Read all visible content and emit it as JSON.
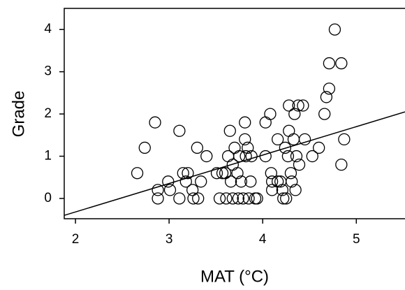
{
  "chart_data": {
    "type": "scatter",
    "xlabel": "MAT (°C)",
    "ylabel": "Grade",
    "xlim": [
      1.88,
      5.52
    ],
    "ylim": [
      -0.48,
      4.5
    ],
    "xticks": [
      2,
      3,
      4,
      5
    ],
    "yticks": [
      0,
      1,
      2,
      3,
      4
    ],
    "series": [
      {
        "color": "#000000",
        "x": [
          2.66,
          2.74,
          2.85,
          2.88,
          2.88,
          2.99,
          3.01,
          3.11,
          3.11,
          3.15,
          3.18,
          3.2,
          3.25,
          3.26,
          3.3,
          3.31,
          3.34,
          3.4,
          3.51,
          3.54,
          3.57,
          3.6,
          3.61,
          3.63,
          3.65,
          3.66,
          3.68,
          3.68,
          3.7,
          3.73,
          3.74,
          3.75,
          3.77,
          3.79,
          3.81,
          3.81,
          3.82,
          3.84,
          3.85,
          3.87,
          3.88,
          3.92,
          3.94,
          4.03,
          4.03,
          4.08,
          4.09,
          4.1,
          4.1,
          4.16,
          4.16,
          4.19,
          4.21,
          4.22,
          4.24,
          4.25,
          4.27,
          4.28,
          4.28,
          4.3,
          4.31,
          4.33,
          4.34,
          4.35,
          4.36,
          4.38,
          4.39,
          4.43,
          4.45,
          4.53,
          4.6,
          4.66,
          4.68,
          4.71,
          4.71,
          4.77,
          4.84,
          4.84,
          4.87
        ],
        "values": [
          0.6,
          1.2,
          1.8,
          0.2,
          0,
          0.4,
          0.2,
          1.6,
          0,
          0.6,
          0.4,
          0.6,
          0.2,
          0,
          1.2,
          0,
          0.4,
          1.0,
          0.6,
          0,
          0.6,
          0.6,
          0,
          1.0,
          1.6,
          0.4,
          0,
          0.8,
          1.2,
          0.6,
          0,
          1.0,
          0.4,
          0,
          1.8,
          1.4,
          1.0,
          1.2,
          0,
          0.4,
          1.0,
          0,
          0,
          1.0,
          1.8,
          2.0,
          0.6,
          0.2,
          0.4,
          1.4,
          0.4,
          0.4,
          0.2,
          0,
          1.2,
          0,
          1.0,
          2.2,
          1.6,
          0.6,
          0.4,
          1.4,
          2.0,
          0.2,
          1.0,
          2.2,
          0.8,
          2.2,
          1.4,
          1.0,
          1.2,
          2.0,
          2.4,
          2.6,
          3.2,
          4.0,
          3.2,
          0.8,
          1.4
        ]
      },
      {
        "color": "#000000",
        "style": "line",
        "x": [
          1.88,
          5.52
        ],
        "values": [
          -0.4,
          2.05
        ]
      }
    ]
  }
}
